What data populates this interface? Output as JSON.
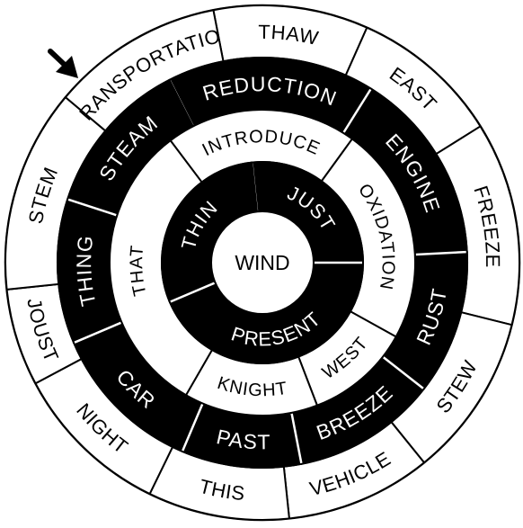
{
  "puzzle": {
    "center_word": "WIND",
    "arrow_icon": "arrow-down-right-icon",
    "colors": {
      "dark": "#000000",
      "light": "#ffffff"
    },
    "rings": [
      {
        "name": "outer",
        "segments": [
          {
            "text": "THAW",
            "color": "light"
          },
          {
            "text": "EAST",
            "color": "light"
          },
          {
            "text": "FREEZE",
            "color": "light"
          },
          {
            "text": "STEW",
            "color": "light"
          },
          {
            "text": "VEHICLE",
            "color": "light"
          },
          {
            "text": "THIS",
            "color": "light"
          },
          {
            "text": "NIGHT",
            "color": "light"
          },
          {
            "text": "JOUST",
            "color": "light"
          },
          {
            "text": "STEM",
            "color": "light"
          },
          {
            "text": "TRANSPORTATION",
            "color": "light"
          }
        ]
      },
      {
        "name": "middle",
        "segments": [
          {
            "text": "REDUCTION",
            "color": "dark"
          },
          {
            "text": "ENGINE",
            "color": "dark"
          },
          {
            "text": "RUST",
            "color": "dark"
          },
          {
            "text": "BREEZE",
            "color": "dark"
          },
          {
            "text": "PAST",
            "color": "dark"
          },
          {
            "text": "CAR",
            "color": "dark"
          },
          {
            "text": "THING",
            "color": "dark"
          },
          {
            "text": "STEAM",
            "color": "dark"
          }
        ]
      },
      {
        "name": "inner",
        "segments": [
          {
            "text": "INTRODUCE",
            "color": "light"
          },
          {
            "text": "OXIDATION",
            "color": "light"
          },
          {
            "text": "WEST",
            "color": "light"
          },
          {
            "text": "KNIGHT",
            "color": "light"
          },
          {
            "text": "THAT",
            "color": "light"
          }
        ]
      },
      {
        "name": "core",
        "segments": [
          {
            "text": "JUST",
            "color": "dark"
          },
          {
            "text": "PRESENT",
            "color": "dark"
          },
          {
            "text": "THIN",
            "color": "dark"
          }
        ]
      }
    ]
  }
}
